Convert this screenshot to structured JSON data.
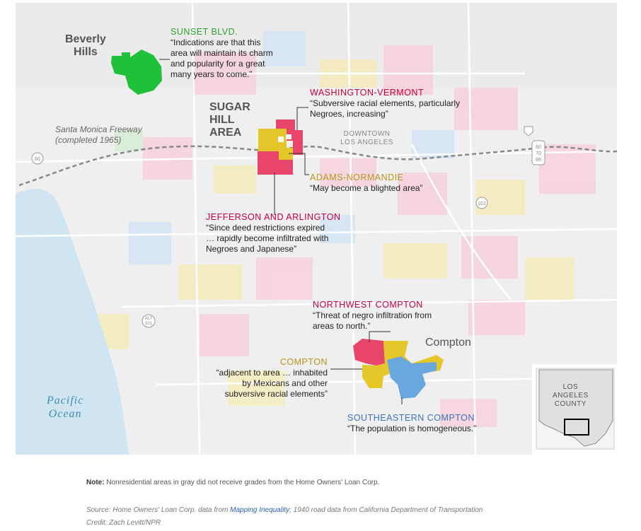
{
  "annotations": {
    "sunset": {
      "title": "SUNSET BLVD.",
      "lines": [
        "“Indications are that this",
        "area will maintain its charm",
        "and popularity for a great",
        "many years to come.”"
      ]
    },
    "washington": {
      "title": "WASHINGTON-VERMONT",
      "lines": [
        "“Subversive racial elements, particularly",
        "Negroes, increasing”"
      ]
    },
    "adams": {
      "title": "ADAMS-NORMANDIE",
      "lines": [
        "“May become a blighted area”"
      ]
    },
    "jefferson": {
      "title": "JEFFERSON AND ARLINGTON",
      "lines": [
        "“Since deed restrictions expired",
        "… rapidly become infiltrated with",
        "Negroes and Japanese”"
      ]
    },
    "nw_compton": {
      "title": "NORTHWEST COMPTON",
      "lines": [
        "“Threat of negro infiltration from",
        "areas to north.”"
      ]
    },
    "compton": {
      "title": "COMPTON",
      "lines": [
        "“adjacent to area … inhabited",
        "by Mexicans and other",
        "subversive racial elements”"
      ]
    },
    "se_compton": {
      "title": "SOUTHEASTERN COMPTON",
      "lines": [
        "“The population is homogeneous.”"
      ]
    }
  },
  "places": {
    "beverly": [
      "Beverly",
      "Hills"
    ],
    "sugar_hill": [
      "SUGAR",
      "HILL",
      "AREA"
    ],
    "compton": "Compton",
    "ocean": [
      "Pacific",
      "Ocean"
    ],
    "freeway": [
      "Santa Monica Freeway",
      "(completed 1965)"
    ],
    "downtown": [
      "DOWNTOWN",
      "LOS ANGELES"
    ]
  },
  "shields": {
    "i10": "10",
    "hwy66": "66",
    "us101": "101",
    "alt101": "ALT\n101",
    "i60": "60\n70\n99"
  },
  "inset": {
    "label": [
      "LOS",
      "ANGELES",
      "COUNTY"
    ]
  },
  "note": {
    "label": "Note:",
    "text": "Nonresidential areas in gray did not receive grades from the Home Owners' Loan Corp."
  },
  "source": {
    "prefix": "Source: Home Owners' Loan Corp. data from ",
    "link": "Mapping Inequality",
    "suffix": "; 1940 road data from California Department of Transportation",
    "credit": "Credit: Zach Levitt/NPR"
  },
  "colors": {
    "green": "#1fc03a",
    "red": "#e8456a",
    "gold": "#e6c72a",
    "blue": "#6aa7de",
    "water": "#cfe6f2",
    "land": "#efefef",
    "pink_light": "#f6d3dd",
    "yellow_light": "#f5ecbe",
    "blue_light": "#d6e6f4",
    "green_light": "#d7eed6"
  }
}
